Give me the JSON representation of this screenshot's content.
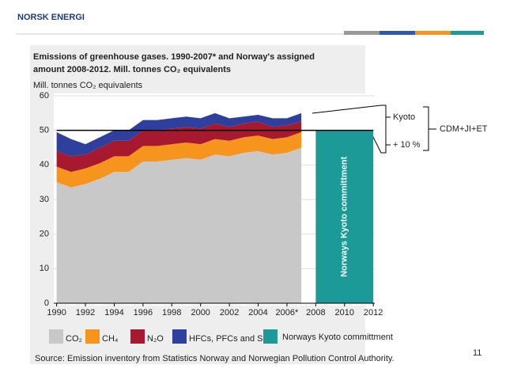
{
  "header": {
    "logo": "NORSK ENERGI"
  },
  "chart_data": {
    "type": "stacked_area",
    "title": [
      "Emissions of greenhouse gases. 1990-2007* and Norway's assigned",
      "amount 2008-2012. Mill. tonnes CO₂ equivalents"
    ],
    "y_label": "Mill. tonnes CO₂ equivalents",
    "x": [
      1990,
      1991,
      1992,
      1993,
      1994,
      1995,
      1996,
      1997,
      1998,
      1999,
      2000,
      2001,
      2002,
      2003,
      2004,
      2005,
      2006,
      2007
    ],
    "series": [
      {
        "name": "CO₂",
        "color": "#c8c8c8",
        "values": [
          35,
          33.5,
          34.5,
          36,
          38,
          38,
          41,
          41,
          41.5,
          42,
          41.5,
          43,
          42.5,
          43.5,
          44,
          43,
          43.5,
          45
        ]
      },
      {
        "name": "CH₄",
        "color": "#f7941d",
        "values": [
          4.5,
          4.5,
          4.5,
          4.5,
          4.5,
          4.5,
          4.5,
          4.5,
          4.5,
          4.5,
          4.5,
          4.5,
          4.5,
          4.5,
          4.5,
          4.5,
          4.5,
          4.5
        ]
      },
      {
        "name": "N₂O",
        "color": "#a6192e",
        "values": [
          4.5,
          4.5,
          4,
          4.5,
          4.5,
          4.5,
          4.5,
          4.5,
          4.5,
          4.5,
          4.5,
          4.5,
          4,
          4,
          4,
          3.5,
          3.5,
          3
        ]
      },
      {
        "name": "HFCs, PFCs and SF₆",
        "color": "#2e3f9e",
        "values": [
          5.5,
          5,
          3,
          3,
          3,
          3,
          3,
          3,
          3,
          3,
          3,
          3,
          2.5,
          2,
          2,
          2.5,
          2,
          2.5
        ]
      }
    ],
    "kyoto_commitment": {
      "name": "Norways Kyoto committment",
      "color": "#1b9a98",
      "value": 50,
      "x": [
        2008,
        2012
      ]
    },
    "xlim": [
      1989.8,
      2012.1
    ],
    "ylim": [
      0,
      60
    ],
    "xticks": [
      1990,
      1992,
      1994,
      1996,
      1998,
      2000,
      2002,
      2004,
      {
        "value": 2006,
        "label": "2006*"
      },
      2008,
      2010,
      2012
    ],
    "yticks": [
      0,
      10,
      20,
      30,
      40,
      50,
      60
    ],
    "annotations": [
      "Kyoto",
      "+ 10 %",
      "CDM+JI+ET"
    ],
    "source": "Source: Emission inventory from Statistics Norway and Norwegian Pollution Control Authority."
  },
  "page_number": "11"
}
